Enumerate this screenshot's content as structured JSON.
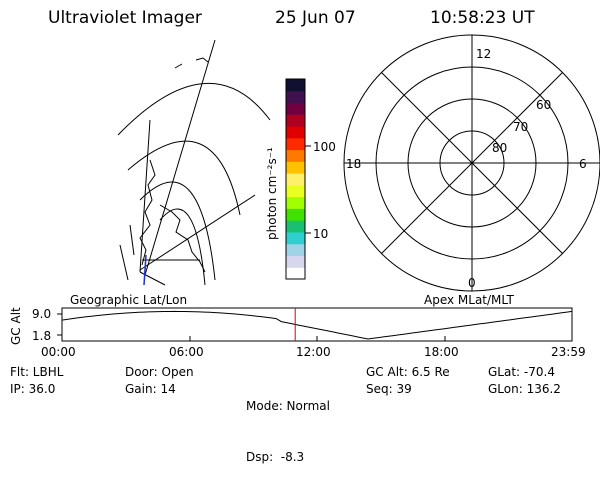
{
  "header": {
    "instrument": "Ultraviolet Imager",
    "date": "25 Jun 07",
    "time": "10:58:23 UT"
  },
  "geo_panel": {
    "label": "Geographic Lat/Lon"
  },
  "colorbar": {
    "unit_label": "photon cm⁻²s⁻¹",
    "ticks": [
      {
        "value": 100,
        "label": "100"
      },
      {
        "value": 10,
        "label": "10"
      }
    ],
    "scale": "log",
    "colors": [
      "#ffffff",
      "#d6d6ee",
      "#9fd4e8",
      "#2fcfd0",
      "#18c070",
      "#40e000",
      "#a0ff00",
      "#e8ff20",
      "#fff06a",
      "#ffc000",
      "#ff7800",
      "#ff2a00",
      "#e00000",
      "#b00020",
      "#700040",
      "#401050",
      "#101030"
    ]
  },
  "polar_panel": {
    "label": "Apex MLat/MLT",
    "mlt_labels": {
      "top": "12",
      "left": "18",
      "right": "6",
      "bottom": "0"
    },
    "lat_labels": [
      "60",
      "70",
      "80"
    ]
  },
  "timeline": {
    "ylabel": "GC Alt",
    "ytick_top": "9.0",
    "ytick_bottom": "1.8",
    "x_labels": [
      "00:00",
      "06:00",
      "12:00",
      "18:00",
      "23:59"
    ],
    "marker_time": "10:58"
  },
  "info": {
    "flt": "Flt: LBHL",
    "ip": "IP: 36.0",
    "door": "Door: Open",
    "gain": "Gain: 14",
    "mode": "Mode: Normal",
    "dsp": "Dsp:  -8.3",
    "gc_alt": "GC Alt: 6.5 Re",
    "seq": "Seq: 39",
    "glat": "GLat: -70.4",
    "glon": "GLon: 136.2"
  }
}
